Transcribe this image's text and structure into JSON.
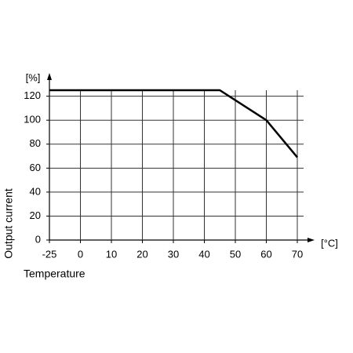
{
  "chart_data": {
    "type": "line",
    "x": [
      -25,
      45,
      60,
      70
    ],
    "values": [
      125,
      125,
      100,
      69
    ],
    "color": "#000000",
    "xlabel": "Temperature",
    "ylabel": "Output current",
    "xunit": "[°C]",
    "yunit": "[%]",
    "xlim": [
      -25,
      70
    ],
    "xticks": [
      -25,
      0,
      10,
      20,
      30,
      40,
      50,
      60,
      70
    ],
    "ylim": [
      0,
      125
    ],
    "yticks": [
      0,
      20,
      40,
      60,
      80,
      100,
      120
    ],
    "grid": true
  }
}
